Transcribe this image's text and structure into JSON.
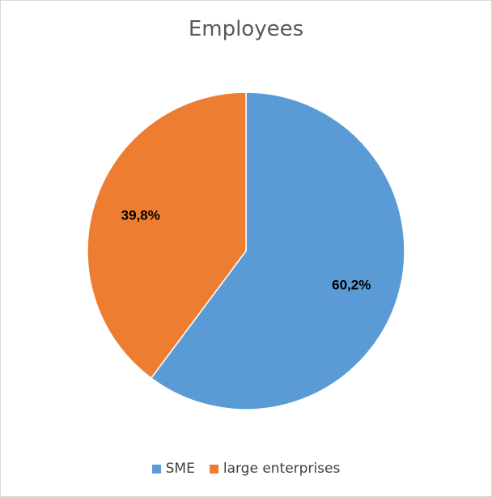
{
  "chart_data": {
    "type": "pie",
    "title": "Employees",
    "categories": [
      "SME",
      "large enterprises"
    ],
    "values": [
      60.2,
      39.8
    ],
    "labels": [
      "60,2%",
      "39,8%"
    ],
    "colors": [
      "#5b9bd5",
      "#ed7d31"
    ],
    "legend_position": "bottom"
  }
}
